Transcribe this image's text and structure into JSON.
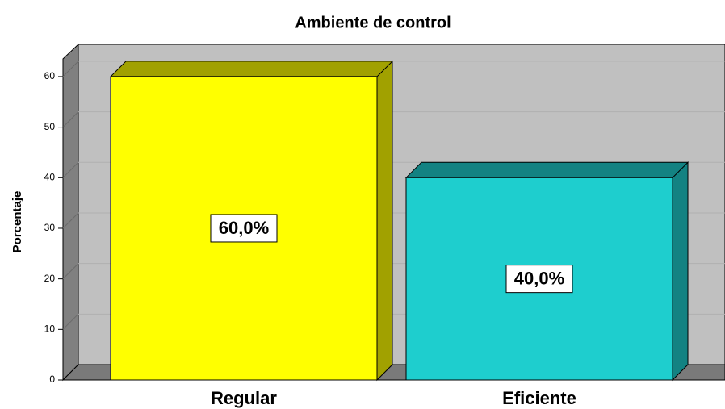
{
  "chart_data": {
    "type": "bar",
    "title": "Ambiente de control",
    "y_label": "Porcentaje",
    "categories": [
      "Regular",
      "Eficiente"
    ],
    "values": [
      60,
      40
    ],
    "value_labels": [
      "60,0%",
      "40,0%"
    ],
    "colors": [
      "#ffff00",
      "#1ecece"
    ],
    "ylim": [
      0,
      63.5
    ],
    "yticks": [
      0,
      10,
      20,
      30,
      40,
      50,
      60
    ],
    "grid": true
  }
}
